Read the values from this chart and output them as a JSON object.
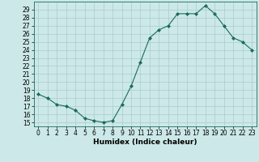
{
  "x": [
    0,
    1,
    2,
    3,
    4,
    5,
    6,
    7,
    8,
    9,
    10,
    11,
    12,
    13,
    14,
    15,
    16,
    17,
    18,
    19,
    20,
    21,
    22,
    23
  ],
  "y": [
    18.5,
    18.0,
    17.2,
    17.0,
    16.5,
    15.5,
    15.2,
    15.0,
    15.2,
    17.2,
    19.5,
    22.5,
    25.5,
    26.5,
    27.0,
    28.5,
    28.5,
    28.5,
    29.5,
    28.5,
    27.0,
    25.5,
    25.0,
    24.0
  ],
  "line_color": "#1a6b5a",
  "marker": "D",
  "marker_size": 2.0,
  "bg_color": "#cce8e8",
  "grid_color": "#aacccc",
  "xlabel": "Humidex (Indice chaleur)",
  "ylim": [
    14.5,
    30.0
  ],
  "xlim": [
    -0.5,
    23.5
  ],
  "yticks": [
    15,
    16,
    17,
    18,
    19,
    20,
    21,
    22,
    23,
    24,
    25,
    26,
    27,
    28,
    29
  ],
  "xticks": [
    0,
    1,
    2,
    3,
    4,
    5,
    6,
    7,
    8,
    9,
    10,
    11,
    12,
    13,
    14,
    15,
    16,
    17,
    18,
    19,
    20,
    21,
    22,
    23
  ],
  "label_fontsize": 6.5,
  "tick_fontsize": 5.5
}
